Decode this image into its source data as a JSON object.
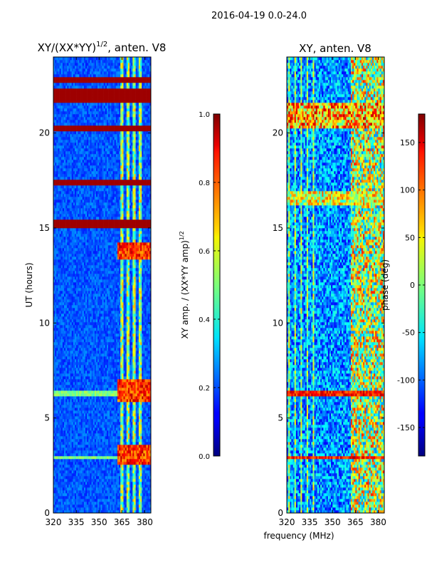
{
  "chart_data": {
    "suptitle": "2016-04-19 0.0-24.0",
    "panels": [
      {
        "type": "heatmap",
        "title": "XY/(XX*YY)",
        "title_sup": "1/2",
        "title_suffix": ", anten. V8",
        "xlabel": "",
        "ylabel": "UT (hours)",
        "xlim": [
          320,
          384
        ],
        "ylim": [
          0,
          24
        ],
        "xticks": [
          "320",
          "335",
          "350",
          "365",
          "380"
        ],
        "xtick_values": [
          320,
          335,
          350,
          365,
          380
        ],
        "yticks": [
          "0",
          "5",
          "10",
          "15",
          "20"
        ],
        "ytick_values": [
          0,
          5,
          10,
          15,
          20
        ],
        "colorbar": {
          "label": "XY amp. / (XX*YY amp)",
          "label_sup": "1/2",
          "range": [
            0.0,
            1.0
          ],
          "ticks": [
            "0.0",
            "0.2",
            "0.4",
            "0.6",
            "0.8",
            "1.0"
          ],
          "tick_values": [
            0.0,
            0.2,
            0.4,
            0.6,
            0.8,
            1.0
          ]
        }
      },
      {
        "type": "heatmap",
        "title": "XY, anten. V8",
        "xlabel": "frequency (MHz)",
        "ylabel": "",
        "xlim": [
          320,
          384
        ],
        "ylim": [
          0,
          24
        ],
        "xticks": [
          "320",
          "335",
          "350",
          "365",
          "380"
        ],
        "xtick_values": [
          320,
          335,
          350,
          365,
          380
        ],
        "yticks": [
          "0",
          "5",
          "10",
          "15",
          "20"
        ],
        "ytick_values": [
          0,
          5,
          10,
          15,
          20
        ],
        "colorbar": {
          "label": "phase (deg)",
          "range": [
            -180,
            180
          ],
          "ticks": [
            "-150",
            "-100",
            "-50",
            "0",
            "50",
            "100",
            "150"
          ],
          "tick_values": [
            -150,
            -100,
            -50,
            0,
            50,
            100,
            150
          ]
        }
      }
    ],
    "colormap": "jet",
    "features": {
      "flagged_bands_ut": [
        [
          21.55,
          22.35
        ],
        [
          15.0,
          15.5
        ],
        [
          17.2,
          17.55
        ],
        [
          20.05,
          20.35
        ],
        [
          22.7,
          22.95
        ]
      ],
      "bright_band_ut": [
        [
          6.2,
          6.45
        ],
        [
          2.9,
          3.05
        ]
      ],
      "bright_freq_mhz": [
        [
          364,
          366
        ],
        [
          368,
          370
        ],
        [
          372,
          374
        ],
        [
          376,
          378
        ]
      ],
      "amp_hot_ut_windows": [
        [
          5.8,
          7.0
        ],
        [
          2.5,
          3.6
        ],
        [
          13.3,
          14.3
        ]
      ]
    }
  }
}
